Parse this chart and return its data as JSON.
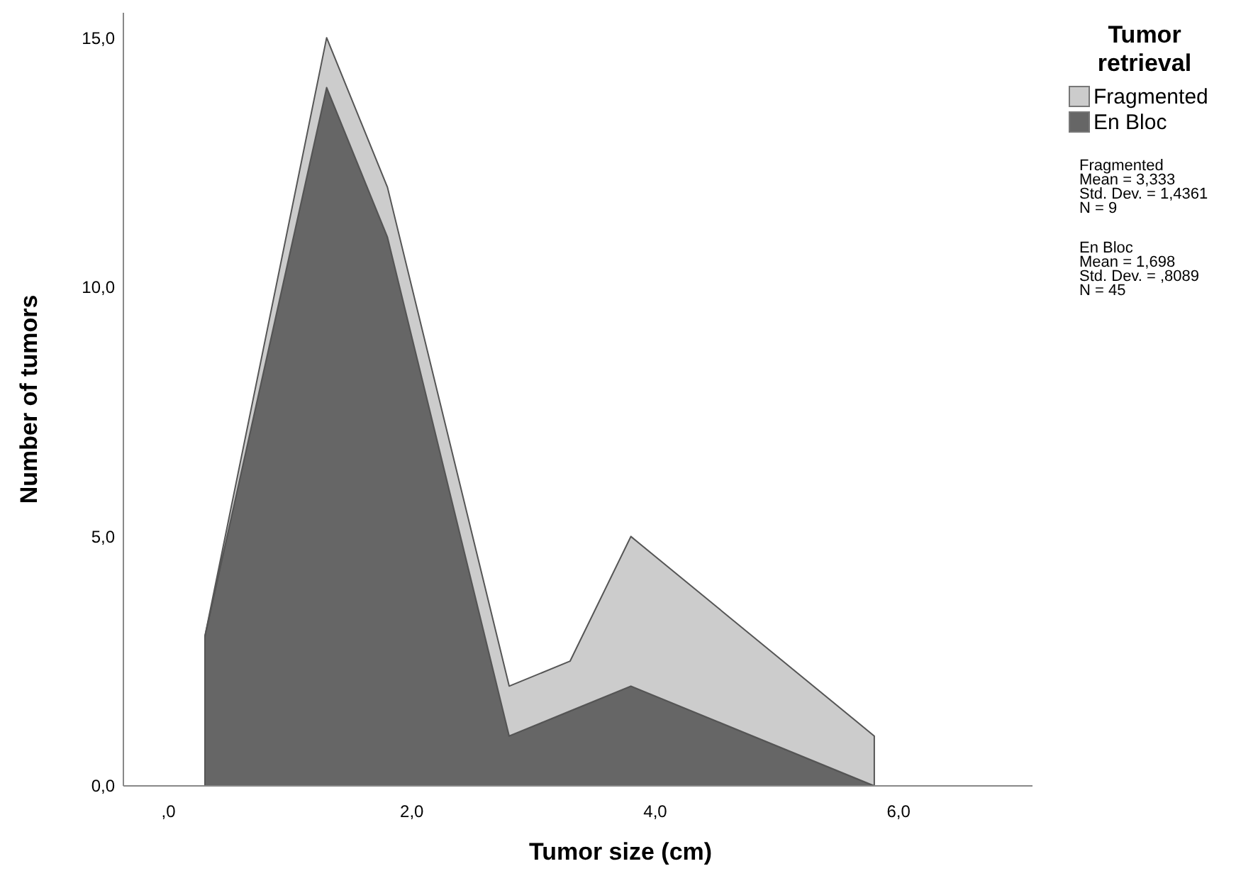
{
  "chart_data": {
    "type": "area",
    "stacked": true,
    "xlabel": "Tumor size (cm)",
    "ylabel": "Number of tumors",
    "legend_title": "Tumor retrieval",
    "legend": "top right",
    "x": [
      0.3,
      1.3,
      1.8,
      2.8,
      3.3,
      3.8,
      5.8
    ],
    "series": [
      {
        "name": "En Bloc",
        "color": "#666666",
        "values": [
          3,
          14,
          11,
          1,
          1.5,
          2,
          0
        ]
      },
      {
        "name": "Fragmented",
        "color": "#cccccc",
        "values": [
          0,
          1,
          1,
          1,
          1,
          3,
          1
        ]
      }
    ],
    "xlim": [
      -0.37,
      7.1
    ],
    "xticks": [
      {
        "value": 0,
        "label": ",0"
      },
      {
        "value": 2,
        "label": "2,0"
      },
      {
        "value": 4,
        "label": "4,0"
      },
      {
        "value": 6,
        "label": "6,0"
      }
    ],
    "ylim": [
      0,
      15.5
    ],
    "yticks": [
      {
        "value": 0,
        "label": "0,0"
      },
      {
        "value": 5,
        "label": "5,0"
      },
      {
        "value": 10,
        "label": "10,0"
      },
      {
        "value": 15,
        "label": "15,0"
      }
    ],
    "grid": false,
    "annotations": [
      "Fragmented\nMean = 3,333\nStd. Dev. = 1,4361\nN = 9",
      "En Bloc\nMean = 1,698\nStd. Dev. = ,8089\nN = 45"
    ]
  }
}
